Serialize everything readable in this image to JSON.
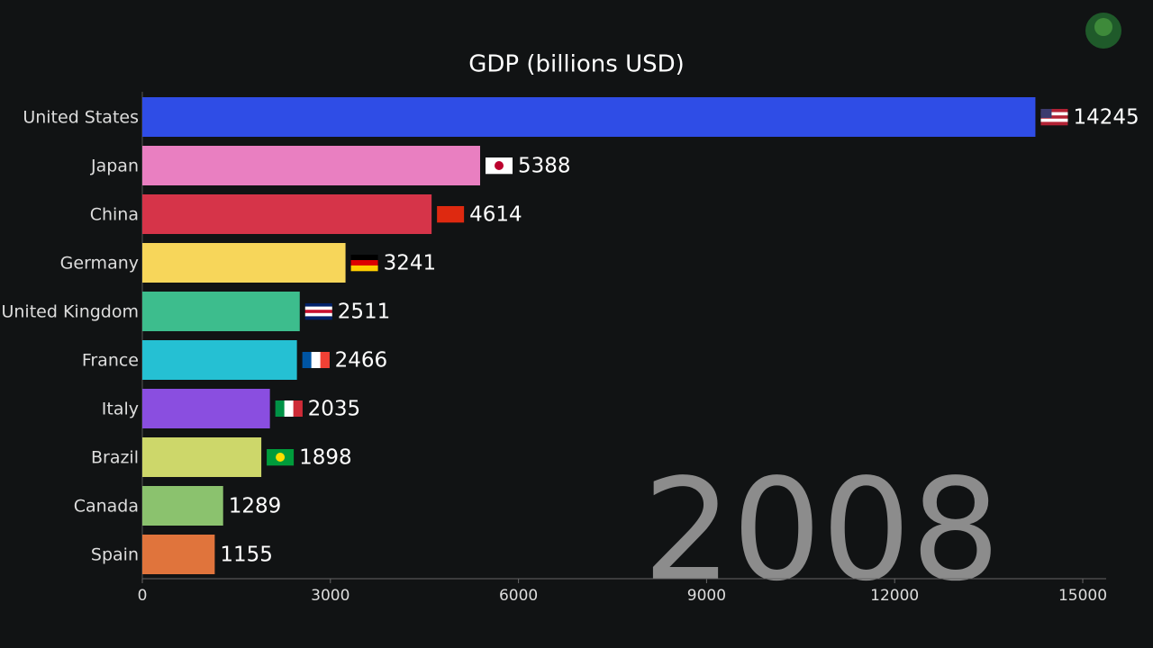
{
  "chart_data": {
    "type": "bar",
    "orientation": "horizontal",
    "title": "GDP (billions USD)",
    "annotation": "2008",
    "categories": [
      "United States",
      "Japan",
      "China",
      "Germany",
      "United Kingdom",
      "France",
      "Italy",
      "Brazil",
      "Canada",
      "Spain"
    ],
    "values": [
      14245,
      5388,
      4614,
      3241,
      2511,
      2466,
      2035,
      1898,
      1289,
      1155
    ],
    "colors": [
      "#2f4de6",
      "#e97fc1",
      "#d63449",
      "#f7d65a",
      "#3dbd8d",
      "#25c0d3",
      "#8a4ee0",
      "#cdd76a",
      "#8bc26e",
      "#e0743c"
    ],
    "xlim": [
      0,
      15000
    ],
    "xticks": [
      0,
      3000,
      6000,
      9000,
      12000,
      15000
    ]
  }
}
